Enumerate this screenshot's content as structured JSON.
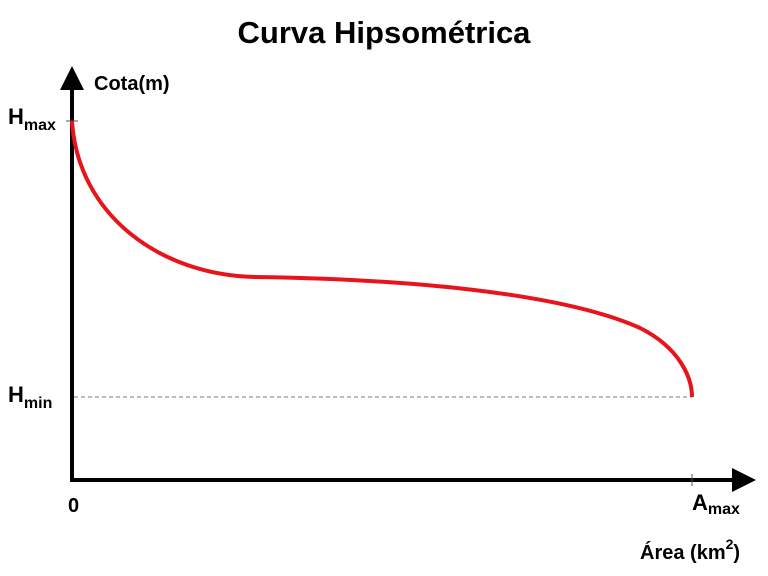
{
  "title": "Curva Hipsométrica",
  "y_axis": {
    "label": "Cota(m)",
    "hmax": {
      "base": "H",
      "sub": "max"
    },
    "hmin": {
      "base": "H",
      "sub": "min"
    }
  },
  "x_axis": {
    "label_base": "Área (km",
    "label_sup": "2",
    "label_end": ")",
    "origin": "0",
    "amax": {
      "base": "A",
      "sub": "max"
    }
  },
  "colors": {
    "curve": "#e8141b",
    "axes": "#000000",
    "reference_line": "#777777"
  }
}
